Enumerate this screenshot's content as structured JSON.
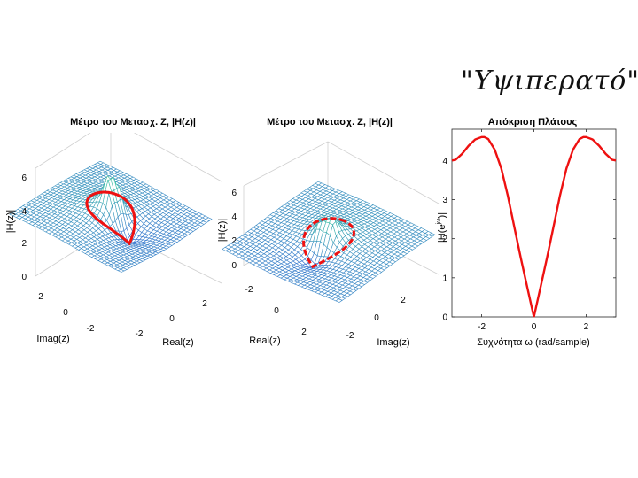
{
  "annotation": {
    "handwritten_note": "\"Υψιπερατό\""
  },
  "colors": {
    "response_line": "#ee1111",
    "surface_low": "#3b6fd6",
    "surface_mid": "#3fbfa7",
    "surface_high": "#f4ec4a"
  },
  "chart_data": [
    {
      "type": "surface3d",
      "title": "Μέτρο του Μετασχ. Z, |H(z)|",
      "zlabel": "|H(z)|",
      "xlabel": "Real(z)",
      "ylabel": "Imag(z)",
      "zticks": [
        "0",
        "2",
        "4",
        "6"
      ],
      "xticks": [
        "-2",
        "0",
        "2"
      ],
      "yticks": [
        "2",
        "0",
        "-2"
      ],
      "zlim": [
        0,
        6.5
      ],
      "view": "front-left, z-axis on left",
      "peak": {
        "re": 0.8,
        "im": 0,
        "z": 6
      },
      "unit_circle_trace": "red curve of |H(e^jω)| on the unit circle"
    },
    {
      "type": "surface3d",
      "title": "Μέτρο του Μετασχ. Z, |H(z)|",
      "zlabel": "|H(z)|",
      "xlabel": "Real(z)",
      "ylabel": "Imag(z)",
      "zticks": [
        "0",
        "2",
        "4",
        "6"
      ],
      "xticks": [
        "-2",
        "0",
        "2"
      ],
      "yticks": [
        "-2",
        "0",
        "2"
      ],
      "zlim": [
        0,
        6.5
      ],
      "view": "rotated, zero at z=1 visible",
      "zero": {
        "re": 1,
        "im": 0,
        "z": 0
      },
      "unit_circle_trace": "red curve of |H(e^jω)| on the unit circle"
    },
    {
      "type": "line",
      "title": "Απόκριση Πλάτους",
      "xlabel": "Συχνότητα ω (rad/sample)",
      "ylabel": "|H(e^{jω})|",
      "xlim": [
        -3.14159,
        3.14159
      ],
      "ylim": [
        0,
        4.8
      ],
      "xticks": [
        "-2",
        "0",
        "2"
      ],
      "yticks": [
        "0",
        "1",
        "2",
        "3",
        "4"
      ],
      "series": [
        {
          "color": "#ee1111",
          "x": [
            -3.14,
            -3.0,
            -2.75,
            -2.5,
            -2.25,
            -2.0,
            -1.9,
            -1.75,
            -1.5,
            -1.25,
            -1.0,
            -0.75,
            -0.5,
            -0.25,
            0.0,
            0.25,
            0.5,
            0.75,
            1.0,
            1.25,
            1.5,
            1.75,
            1.9,
            2.0,
            2.25,
            2.5,
            2.75,
            3.0,
            3.14
          ],
          "y": [
            4.0,
            4.02,
            4.17,
            4.38,
            4.54,
            4.6,
            4.6,
            4.55,
            4.28,
            3.8,
            3.1,
            2.3,
            1.5,
            0.75,
            0.0,
            0.75,
            1.5,
            2.3,
            3.1,
            3.8,
            4.28,
            4.55,
            4.6,
            4.6,
            4.54,
            4.38,
            4.17,
            4.02,
            4.0
          ]
        }
      ],
      "grid": false
    }
  ]
}
